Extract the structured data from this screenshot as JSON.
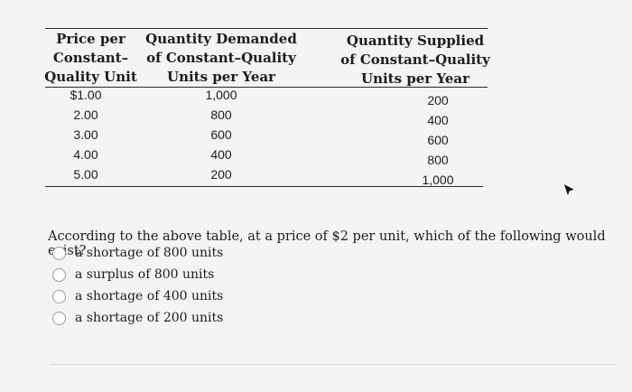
{
  "table": {
    "headers": {
      "price": [
        "Price per",
        "Constant–",
        "Quality Unit"
      ],
      "demand": [
        "Quantity Demanded",
        "of Constant–Quality",
        "Units per Year"
      ],
      "supply": [
        "Quantity Supplied",
        "of Constant–Quality",
        "Units per Year"
      ]
    },
    "price": [
      "$1.00",
      "2.00",
      "3.00",
      "4.00",
      "5.00"
    ],
    "demand": [
      "1,000",
      "800",
      "600",
      "400",
      "200"
    ],
    "supply": [
      "200",
      "400",
      "600",
      "800",
      "1,000"
    ]
  },
  "question": "According to the above table, at a price of $2 per unit, which of the following would exist?",
  "options": [
    "a shortage of 800 units",
    "a surplus of 800 units",
    "a shortage of 400 units",
    "a shortage of 200 units"
  ]
}
